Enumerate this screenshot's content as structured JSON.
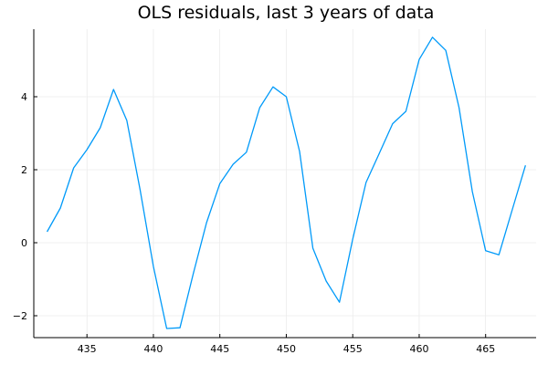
{
  "chart_data": {
    "type": "line",
    "title": "OLS residuals, last 3 years of data",
    "xlabel": "",
    "ylabel": "",
    "xlim": [
      431,
      468.8
    ],
    "ylim": [
      -2.6,
      5.85
    ],
    "xticks": [
      435,
      440,
      445,
      450,
      455,
      460,
      465
    ],
    "yticks": [
      -2,
      0,
      2,
      4
    ],
    "grid": true,
    "legend": "none",
    "series": [
      {
        "color": "#009af9",
        "x": [
          432,
          433,
          434,
          435,
          436,
          437,
          438,
          439,
          440,
          441,
          442,
          443,
          444,
          445,
          446,
          447,
          448,
          449,
          450,
          451,
          452,
          453,
          454,
          455,
          456,
          457,
          458,
          459,
          460,
          461,
          462,
          463,
          464,
          465,
          466,
          467,
          468
        ],
        "values": [
          0.3,
          0.95,
          2.05,
          2.55,
          3.15,
          4.2,
          3.35,
          1.45,
          -0.65,
          -2.35,
          -2.33,
          -0.85,
          0.55,
          1.62,
          2.15,
          2.48,
          3.7,
          4.27,
          4.0,
          2.5,
          -0.15,
          -1.05,
          -1.63,
          0.1,
          1.65,
          2.45,
          3.26,
          3.6,
          5.02,
          5.63,
          5.27,
          3.7,
          1.4,
          -0.22,
          -0.33,
          0.9,
          2.12
        ]
      }
    ]
  }
}
